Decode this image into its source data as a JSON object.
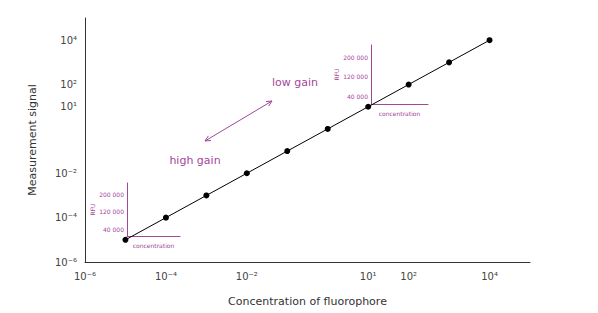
{
  "chart_data": {
    "type": "line",
    "x_label": "Concentration of fluorophore",
    "y_label": "Measurement signal",
    "x": [
      1e-05,
      0.0001,
      0.001,
      0.01,
      0.1,
      1,
      10,
      100,
      1000,
      10000
    ],
    "values": [
      1e-05,
      0.0001,
      0.001,
      0.01,
      0.1,
      1,
      10,
      100,
      1000,
      10000
    ],
    "color": "#000000",
    "marker": "circle",
    "line_style": "solid",
    "log": true,
    "grid": false,
    "xlim": [
      1e-06,
      100000
    ],
    "ylim": [
      1e-06,
      100000
    ],
    "xticks": [
      {
        "value": 1e-06,
        "label": "10⁻⁶"
      },
      {
        "value": 0.0001,
        "label": "10⁻⁴"
      },
      {
        "value": 0.01,
        "label": "10⁻²"
      },
      {
        "value": 10,
        "label": "10¹"
      },
      {
        "value": 100,
        "label": "10²"
      },
      {
        "value": 10000,
        "label": "10⁴"
      }
    ],
    "yticks": [
      {
        "value": 1e-06,
        "label": "10⁻⁶"
      },
      {
        "value": 0.0001,
        "label": "10⁻⁴"
      },
      {
        "value": 0.01,
        "label": "10⁻²"
      },
      {
        "value": 10,
        "label": "10¹"
      },
      {
        "value": 100,
        "label": "10²"
      },
      {
        "value": 10000,
        "label": "10⁴"
      }
    ],
    "annotations": [
      {
        "text": "low gain"
      },
      {
        "text": "high gain"
      }
    ],
    "insets": [
      {
        "x_label": "concentration",
        "y_label": "RFU",
        "ylim": [
          10000,
          250000
        ],
        "yticks": [
          {
            "value": 40000,
            "label": "40 000"
          },
          {
            "value": 120000,
            "label": "120 000"
          },
          {
            "value": 200000,
            "label": "200 000"
          }
        ]
      },
      {
        "x_label": "concentration",
        "y_label": "RFU",
        "ylim": [
          10000,
          250000
        ],
        "yticks": [
          {
            "value": 40000,
            "label": "40 000"
          },
          {
            "value": 120000,
            "label": "120 000"
          },
          {
            "value": 200000,
            "label": "200 000"
          }
        ]
      }
    ]
  }
}
